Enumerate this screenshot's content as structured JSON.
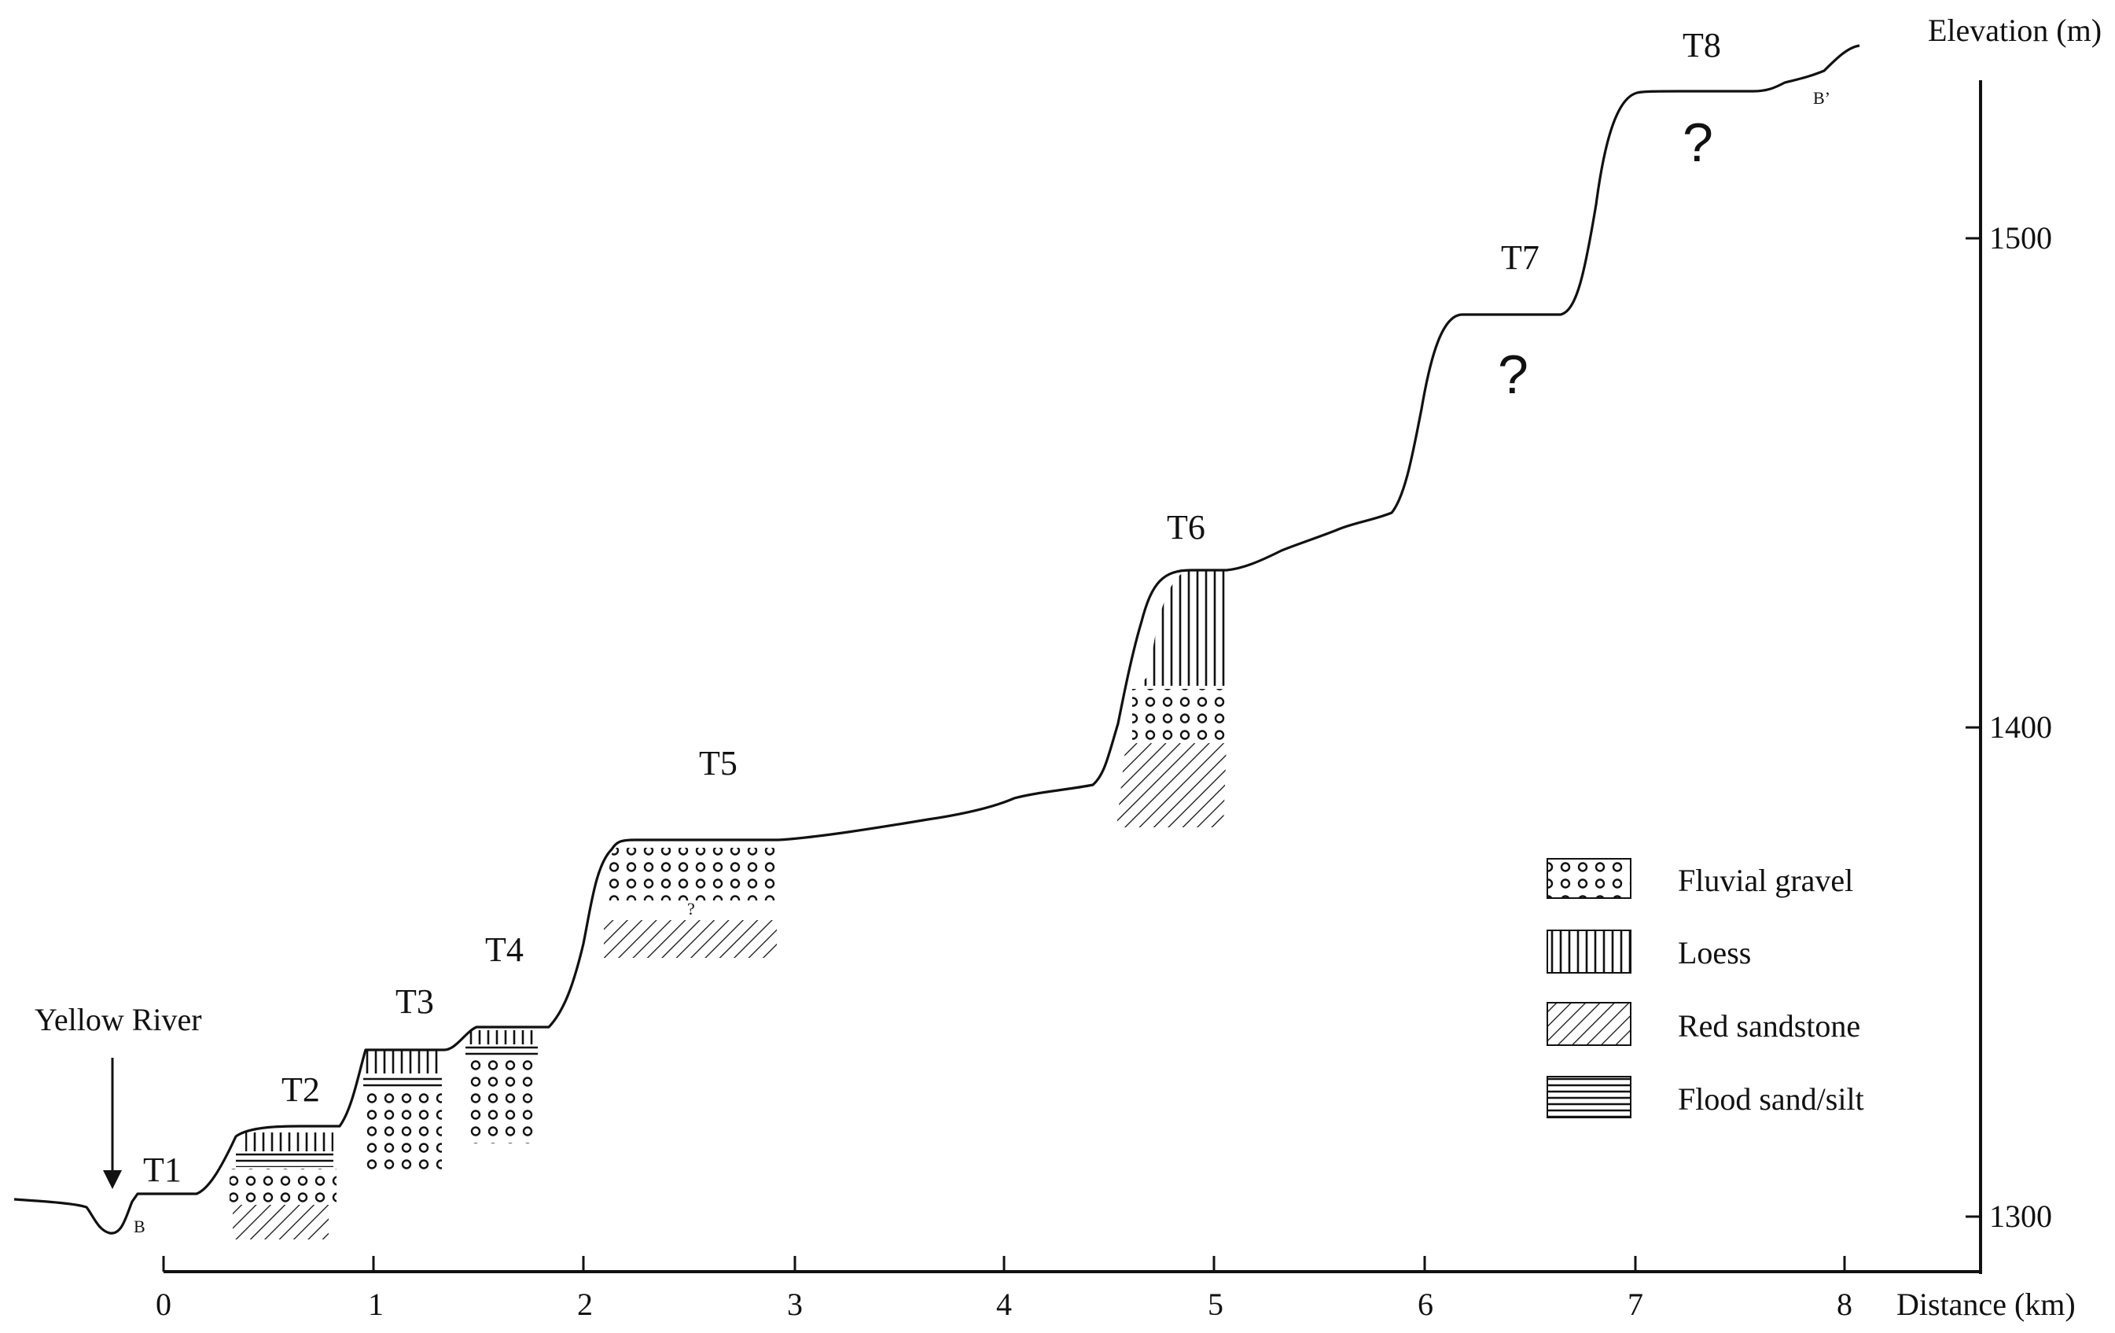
{
  "axes": {
    "x_label": "Distance (km)",
    "y_label": "Elevation (m)",
    "x_ticks": [
      "0",
      "1",
      "2",
      "3",
      "4",
      "5",
      "6",
      "7",
      "8"
    ],
    "y_ticks": [
      "1300",
      "1400",
      "1500"
    ]
  },
  "terraces": [
    {
      "label": "T1"
    },
    {
      "label": "T2"
    },
    {
      "label": "T3"
    },
    {
      "label": "T4"
    },
    {
      "label": "T5"
    },
    {
      "label": "T6"
    },
    {
      "label": "T7"
    },
    {
      "label": "T8"
    }
  ],
  "annotations": {
    "river": "Yellow River",
    "section_start": "B",
    "section_end": "B’",
    "unknown_mark": "?",
    "uncertain_small": "?"
  },
  "legend": [
    {
      "key": "gravel",
      "label": "Fluvial gravel"
    },
    {
      "key": "loess",
      "label": "Loess"
    },
    {
      "key": "sandstone",
      "label": "Red sandstone"
    },
    {
      "key": "flood",
      "label": "Flood sand/silt"
    }
  ],
  "colors": {
    "ink": "#111111",
    "background": "#ffffff"
  }
}
